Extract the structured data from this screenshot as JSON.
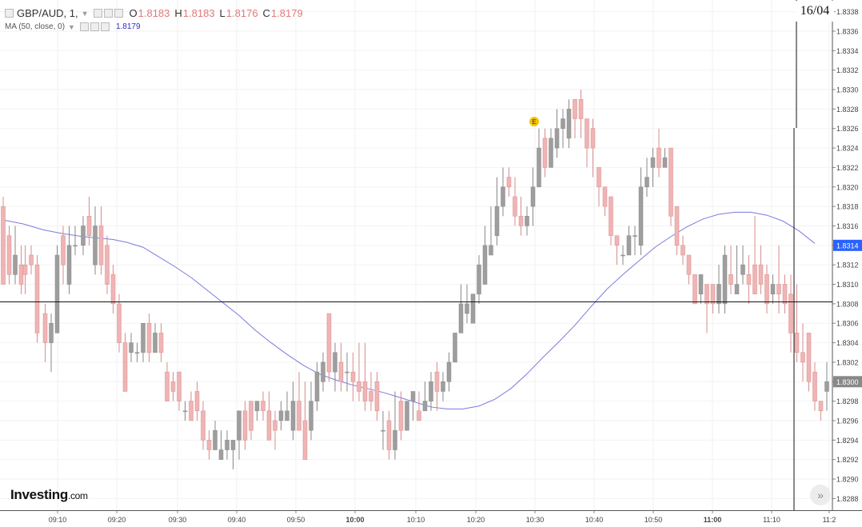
{
  "header": {
    "symbol_label": "GBP/AUD, 1,",
    "open_label": "O",
    "open": "1.8183",
    "high_label": "H",
    "high": "1.8183",
    "low_label": "L",
    "low": "1.8176",
    "close_label": "C",
    "close": "1.8179",
    "ma_label": "MA (50, close, 0)",
    "ma_value": "1.8179"
  },
  "date_marker": "16/04",
  "event_badge": "E",
  "logo": {
    "main": "Investing",
    "suffix": ".com"
  },
  "colors": {
    "up": "#9e9e9e",
    "down": "#f0b4b4",
    "down_border": "#d98c8c",
    "ma": "#7a7ae0",
    "price_tag": "#2962ff",
    "event": "#f2c200"
  },
  "icons": [
    "settings-icon",
    "eye-icon",
    "close-icon",
    "forward-icon"
  ],
  "chart_data": {
    "type": "candlestick",
    "title": "GBP/AUD, 1",
    "x_tick_labels": [
      "09:10",
      "09:20",
      "09:30",
      "09:40",
      "09:50",
      "10:00",
      "10:10",
      "10:20",
      "10:30",
      "10:40",
      "10:50",
      "11:00",
      "11:10",
      "11:2"
    ],
    "y_tick_labels": [
      "1.8338",
      "1.8336",
      "1.8334",
      "1.8332",
      "1.8330",
      "1.8328",
      "1.8326",
      "1.8324",
      "1.8322",
      "1.8320",
      "1.8318",
      "1.8316",
      "1.8314",
      "1.8312",
      "1.8310",
      "1.8308",
      "1.8306",
      "1.8304",
      "1.8302",
      "1.8300",
      "1.8298",
      "1.8296",
      "1.8294",
      "1.8292",
      "1.8290",
      "1.8288"
    ],
    "ylim": [
      1.82868,
      1.83392
    ],
    "crosshair_price": 1.83082,
    "current_price_label": "1.8314",
    "current_price": 1.8314,
    "secondary_price_label": "1.8300",
    "secondary_price": 1.83,
    "ma_series": {
      "name": "MA (50, close, 0)",
      "points": [
        [
          0,
          1.83166
        ],
        [
          10,
          1.83162
        ],
        [
          20,
          1.83156
        ],
        [
          30,
          1.83152
        ],
        [
          40,
          1.83149
        ],
        [
          50,
          1.83147
        ],
        [
          55,
          1.83146
        ],
        [
          62,
          1.83143
        ],
        [
          70,
          1.83138
        ],
        [
          78,
          1.83128
        ],
        [
          86,
          1.83118
        ],
        [
          94,
          1.83107
        ],
        [
          102,
          1.83094
        ],
        [
          110,
          1.83081
        ],
        [
          118,
          1.83068
        ],
        [
          126,
          1.83053
        ],
        [
          134,
          1.8304
        ],
        [
          142,
          1.83028
        ],
        [
          150,
          1.83017
        ],
        [
          158,
          1.83008
        ],
        [
          166,
          1.83002
        ],
        [
          174,
          1.82997
        ],
        [
          182,
          1.82993
        ],
        [
          190,
          1.82989
        ],
        [
          198,
          1.82984
        ],
        [
          206,
          1.82979
        ],
        [
          214,
          1.82974
        ],
        [
          222,
          1.82972
        ],
        [
          230,
          1.82972
        ],
        [
          238,
          1.82975
        ],
        [
          246,
          1.82982
        ],
        [
          254,
          1.82993
        ],
        [
          262,
          1.83008
        ],
        [
          270,
          1.83025
        ],
        [
          278,
          1.83041
        ],
        [
          286,
          1.83058
        ],
        [
          294,
          1.83077
        ],
        [
          302,
          1.83095
        ],
        [
          310,
          1.8311
        ],
        [
          318,
          1.83124
        ],
        [
          326,
          1.83138
        ],
        [
          334,
          1.83149
        ],
        [
          342,
          1.83159
        ],
        [
          350,
          1.83167
        ],
        [
          358,
          1.83172
        ],
        [
          366,
          1.83174
        ],
        [
          374,
          1.83174
        ],
        [
          382,
          1.83171
        ],
        [
          390,
          1.83165
        ],
        [
          398,
          1.83155
        ],
        [
          406,
          1.83142
        ]
      ]
    },
    "candles": [
      [
        0,
        1.8318,
        1.831,
        1.8319,
        1.831
      ],
      [
        3,
        1.8315,
        1.8311,
        1.8316,
        1.831
      ],
      [
        6,
        1.8311,
        1.8313,
        1.8316,
        1.831
      ],
      [
        9,
        1.8312,
        1.831,
        1.8314,
        1.8309
      ],
      [
        11,
        1.8312,
        1.8311,
        1.8314,
        1.8309
      ],
      [
        14,
        1.8313,
        1.8312,
        1.8314,
        1.8311
      ],
      [
        17,
        1.8312,
        1.8305,
        1.8313,
        1.8304
      ],
      [
        21,
        1.8307,
        1.8304,
        1.8308,
        1.8302
      ],
      [
        24,
        1.8304,
        1.8306,
        1.8307,
        1.8301
      ],
      [
        27,
        1.8305,
        1.8313,
        1.8314,
        1.8305
      ],
      [
        30,
        1.8315,
        1.8312,
        1.8316,
        1.831
      ],
      [
        33,
        1.831,
        1.8314,
        1.8316,
        1.8309
      ],
      [
        36,
        1.8314,
        1.8314,
        1.8316,
        1.8313
      ],
      [
        40,
        1.8314,
        1.8316,
        1.8317,
        1.8313
      ],
      [
        43,
        1.8317,
        1.8315,
        1.8319,
        1.8314
      ],
      [
        46,
        1.8312,
        1.8316,
        1.8318,
        1.8311
      ],
      [
        49,
        1.8316,
        1.8312,
        1.8318,
        1.8311
      ],
      [
        52,
        1.8314,
        1.831,
        1.8315,
        1.8309
      ],
      [
        55,
        1.8311,
        1.8308,
        1.8312,
        1.8307
      ],
      [
        58,
        1.8308,
        1.8304,
        1.8309,
        1.8303
      ],
      [
        61,
        1.8304,
        1.8299,
        1.8305,
        1.8299
      ],
      [
        64,
        1.8303,
        1.8304,
        1.8305,
        1.8302
      ],
      [
        67,
        1.8303,
        1.8303,
        1.8304,
        1.8302
      ],
      [
        70,
        1.8303,
        1.8306,
        1.8306,
        1.8302
      ],
      [
        73,
        1.8306,
        1.8303,
        1.8307,
        1.8302
      ],
      [
        76,
        1.8303,
        1.8305,
        1.8306,
        1.8303
      ],
      [
        79,
        1.8305,
        1.8303,
        1.8306,
        1.8302
      ],
      [
        82,
        1.8301,
        1.8298,
        1.8302,
        1.8298
      ],
      [
        85,
        1.83,
        1.8299,
        1.8301,
        1.8298
      ],
      [
        88,
        1.8301,
        1.8298,
        1.8301,
        1.8297
      ],
      [
        91,
        1.8297,
        1.8297,
        1.8298,
        1.8296
      ],
      [
        94,
        1.8298,
        1.8296,
        1.8299,
        1.8296
      ],
      [
        97,
        1.8299,
        1.8297,
        1.83,
        1.8296
      ],
      [
        100,
        1.8297,
        1.8294,
        1.8298,
        1.8293
      ],
      [
        103,
        1.8294,
        1.8293,
        1.8295,
        1.8292
      ],
      [
        106,
        1.8293,
        1.8295,
        1.8296,
        1.8293
      ],
      [
        109,
        1.8292,
        1.8293,
        1.8295,
        1.8292
      ],
      [
        112,
        1.8293,
        1.8294,
        1.8295,
        1.8292
      ],
      [
        115,
        1.8293,
        1.8294,
        1.8294,
        1.8291
      ],
      [
        118,
        1.8294,
        1.8297,
        1.8297,
        1.8292
      ],
      [
        121,
        1.8297,
        1.8294,
        1.8298,
        1.8293
      ],
      [
        124,
        1.8298,
        1.8295,
        1.8298,
        1.8294
      ],
      [
        127,
        1.8297,
        1.8298,
        1.8298,
        1.8296
      ],
      [
        130,
        1.8298,
        1.8297,
        1.8299,
        1.8296
      ],
      [
        133,
        1.8297,
        1.8294,
        1.8299,
        1.8294
      ],
      [
        136,
        1.8296,
        1.8295,
        1.8297,
        1.8293
      ],
      [
        139,
        1.8296,
        1.8297,
        1.8298,
        1.8295
      ],
      [
        142,
        1.8296,
        1.8297,
        1.8299,
        1.8296
      ],
      [
        145,
        1.8295,
        1.8298,
        1.83,
        1.8294
      ],
      [
        148,
        1.8298,
        1.8295,
        1.8301,
        1.8295
      ],
      [
        151,
        1.8296,
        1.8292,
        1.83,
        1.8292
      ],
      [
        154,
        1.8295,
        1.8298,
        1.83,
        1.8294
      ],
      [
        157,
        1.8298,
        1.8301,
        1.8302,
        1.8297
      ],
      [
        160,
        1.83,
        1.8302,
        1.8303,
        1.8299
      ],
      [
        163,
        1.8307,
        1.8301,
        1.8307,
        1.83
      ],
      [
        166,
        1.8301,
        1.8303,
        1.8304,
        1.8299
      ],
      [
        169,
        1.8302,
        1.83,
        1.8304,
        1.8299
      ],
      [
        172,
        1.8301,
        1.8301,
        1.8303,
        1.8299
      ],
      [
        175,
        1.8301,
        1.83,
        1.8303,
        1.8298
      ],
      [
        178,
        1.83,
        1.8299,
        1.8304,
        1.8298
      ],
      [
        181,
        1.83,
        1.8298,
        1.8304,
        1.8297
      ],
      [
        184,
        1.8299,
        1.8298,
        1.8301,
        1.8297
      ],
      [
        187,
        1.83,
        1.8297,
        1.8301,
        1.8296
      ],
      [
        190,
        1.8295,
        1.8295,
        1.8297,
        1.8293
      ],
      [
        193,
        1.8296,
        1.8293,
        1.8297,
        1.8292
      ],
      [
        196,
        1.8293,
        1.8295,
        1.8299,
        1.8292
      ],
      [
        199,
        1.8298,
        1.8295,
        1.8299,
        1.8294
      ],
      [
        202,
        1.8295,
        1.8298,
        1.8298,
        1.8295
      ],
      [
        205,
        1.8298,
        1.8299,
        1.8299,
        1.8296
      ],
      [
        208,
        1.8297,
        1.8296,
        1.8299,
        1.8296
      ],
      [
        211,
        1.8297,
        1.8298,
        1.83,
        1.8297
      ],
      [
        214,
        1.8298,
        1.83,
        1.8301,
        1.8297
      ],
      [
        217,
        1.8301,
        1.8299,
        1.8302,
        1.8297
      ],
      [
        220,
        1.8299,
        1.83,
        1.8301,
        1.8298
      ],
      [
        223,
        1.83,
        1.8302,
        1.8303,
        1.8299
      ],
      [
        226,
        1.8302,
        1.8305,
        1.8305,
        1.8302
      ],
      [
        229,
        1.8305,
        1.8308,
        1.831,
        1.8305
      ],
      [
        232,
        1.8307,
        1.8308,
        1.831,
        1.8306
      ],
      [
        235,
        1.8306,
        1.8309,
        1.8309,
        1.8306
      ],
      [
        238,
        1.8309,
        1.8312,
        1.8313,
        1.8308
      ],
      [
        241,
        1.831,
        1.8314,
        1.8316,
        1.831
      ],
      [
        244,
        1.8313,
        1.8314,
        1.8318,
        1.8313
      ],
      [
        247,
        1.8315,
        1.8318,
        1.8321,
        1.8314
      ],
      [
        250,
        1.8318,
        1.832,
        1.8322,
        1.8317
      ],
      [
        253,
        1.8321,
        1.832,
        1.8322,
        1.8319
      ],
      [
        256,
        1.8319,
        1.8317,
        1.8321,
        1.8316
      ],
      [
        259,
        1.8317,
        1.8316,
        1.8319,
        1.8315
      ],
      [
        262,
        1.8316,
        1.8317,
        1.8318,
        1.8315
      ],
      [
        265,
        1.8318,
        1.832,
        1.8322,
        1.8316
      ],
      [
        268,
        1.832,
        1.8324,
        1.8326,
        1.832
      ],
      [
        271,
        1.8325,
        1.8322,
        1.8326,
        1.8321
      ],
      [
        274,
        1.8322,
        1.8325,
        1.8326,
        1.8322
      ],
      [
        277,
        1.8324,
        1.8326,
        1.8328,
        1.8323
      ],
      [
        280,
        1.8326,
        1.8327,
        1.8328,
        1.8324
      ],
      [
        283,
        1.8325,
        1.8328,
        1.8329,
        1.8324
      ],
      [
        286,
        1.8329,
        1.8327,
        1.8329,
        1.8325
      ],
      [
        289,
        1.8329,
        1.8327,
        1.833,
        1.8325
      ],
      [
        292,
        1.8327,
        1.8324,
        1.8327,
        1.8322
      ],
      [
        295,
        1.8326,
        1.8324,
        1.8327,
        1.8321
      ],
      [
        298,
        1.8322,
        1.832,
        1.8322,
        1.8318
      ],
      [
        301,
        1.832,
        1.8318,
        1.832,
        1.8317
      ],
      [
        304,
        1.8319,
        1.8315,
        1.8319,
        1.8314
      ],
      [
        307,
        1.8315,
        1.8314,
        1.8315,
        1.8312
      ],
      [
        310,
        1.8313,
        1.8313,
        1.8314,
        1.8312
      ],
      [
        313,
        1.8313,
        1.8315,
        1.8316,
        1.8313
      ],
      [
        316,
        1.8315,
        1.8315,
        1.8316,
        1.8313
      ],
      [
        319,
        1.8314,
        1.832,
        1.8322,
        1.8313
      ],
      [
        322,
        1.832,
        1.8321,
        1.8323,
        1.8319
      ],
      [
        325,
        1.8322,
        1.8323,
        1.8324,
        1.832
      ],
      [
        328,
        1.8324,
        1.8322,
        1.8326,
        1.8321
      ],
      [
        331,
        1.8322,
        1.8323,
        1.8324,
        1.8322
      ],
      [
        334,
        1.8324,
        1.8317,
        1.8324,
        1.8316
      ],
      [
        337,
        1.8318,
        1.8314,
        1.8318,
        1.8313
      ],
      [
        340,
        1.8314,
        1.8313,
        1.8315,
        1.8312
      ],
      [
        343,
        1.8313,
        1.8311,
        1.8313,
        1.831
      ],
      [
        346,
        1.8311,
        1.8308,
        1.8311,
        1.8308
      ],
      [
        349,
        1.8309,
        1.8311,
        1.8311,
        1.8308
      ],
      [
        352,
        1.831,
        1.8308,
        1.831,
        1.8305
      ],
      [
        355,
        1.831,
        1.8308,
        1.831,
        1.8307
      ],
      [
        358,
        1.8308,
        1.831,
        1.8312,
        1.8307
      ],
      [
        361,
        1.8308,
        1.8313,
        1.8314,
        1.8307
      ],
      [
        364,
        1.8311,
        1.831,
        1.8314,
        1.8309
      ],
      [
        367,
        1.8309,
        1.831,
        1.8314,
        1.8309
      ],
      [
        370,
        1.8311,
        1.8312,
        1.8314,
        1.831
      ],
      [
        373,
        1.8311,
        1.831,
        1.8313,
        1.8308
      ],
      [
        376,
        1.8312,
        1.8309,
        1.8317,
        1.8309
      ],
      [
        379,
        1.8312,
        1.831,
        1.8314,
        1.8309
      ],
      [
        382,
        1.8311,
        1.8308,
        1.8312,
        1.8307
      ],
      [
        385,
        1.8309,
        1.831,
        1.8311,
        1.8308
      ],
      [
        388,
        1.831,
        1.8309,
        1.8314,
        1.8307
      ],
      [
        391,
        1.831,
        1.8308,
        1.8311,
        1.8307
      ],
      [
        394,
        1.8309,
        1.8305,
        1.8311,
        1.8303
      ],
      [
        397,
        1.8305,
        1.8303,
        1.831,
        1.8302
      ],
      [
        400,
        1.8303,
        1.8302,
        1.8306,
        1.83
      ],
      [
        403,
        1.8305,
        1.83,
        1.8305,
        1.8299
      ],
      [
        406,
        1.8301,
        1.8298,
        1.8302,
        1.8297
      ],
      [
        409,
        1.8298,
        1.8297,
        1.8298,
        1.8296
      ],
      [
        412,
        1.8299,
        1.83,
        1.8302,
        1.8297
      ]
    ]
  }
}
